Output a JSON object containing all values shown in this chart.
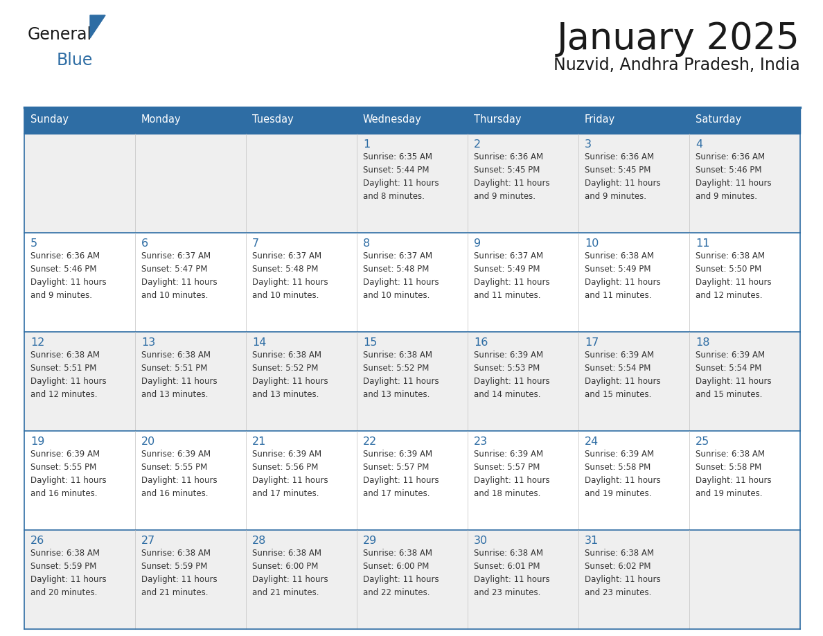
{
  "title": "January 2025",
  "subtitle": "Nuzvid, Andhra Pradesh, India",
  "header_bg": "#2E6DA4",
  "header_text_color": "#FFFFFF",
  "cell_bg_odd": "#EFEFEF",
  "cell_bg_even": "#FFFFFF",
  "day_names": [
    "Sunday",
    "Monday",
    "Tuesday",
    "Wednesday",
    "Thursday",
    "Friday",
    "Saturday"
  ],
  "title_color": "#1a1a1a",
  "subtitle_color": "#1a1a1a",
  "line_color": "#2E6DA4",
  "day_num_color": "#2E6DA4",
  "cell_text_color": "#333333",
  "logo_general_color": "#1a1a1a",
  "logo_blue_color": "#2E6DA4",
  "logo_triangle_color": "#2E6DA4",
  "calendar_data": [
    [
      null,
      null,
      null,
      {
        "day": "1",
        "sunrise": "6:35 AM",
        "sunset": "5:44 PM",
        "daylight_h": "11 hours",
        "daylight_m": "and 8 minutes."
      },
      {
        "day": "2",
        "sunrise": "6:36 AM",
        "sunset": "5:45 PM",
        "daylight_h": "11 hours",
        "daylight_m": "and 9 minutes."
      },
      {
        "day": "3",
        "sunrise": "6:36 AM",
        "sunset": "5:45 PM",
        "daylight_h": "11 hours",
        "daylight_m": "and 9 minutes."
      },
      {
        "day": "4",
        "sunrise": "6:36 AM",
        "sunset": "5:46 PM",
        "daylight_h": "11 hours",
        "daylight_m": "and 9 minutes."
      }
    ],
    [
      {
        "day": "5",
        "sunrise": "6:36 AM",
        "sunset": "5:46 PM",
        "daylight_h": "11 hours",
        "daylight_m": "and 9 minutes."
      },
      {
        "day": "6",
        "sunrise": "6:37 AM",
        "sunset": "5:47 PM",
        "daylight_h": "11 hours",
        "daylight_m": "and 10 minutes."
      },
      {
        "day": "7",
        "sunrise": "6:37 AM",
        "sunset": "5:48 PM",
        "daylight_h": "11 hours",
        "daylight_m": "and 10 minutes."
      },
      {
        "day": "8",
        "sunrise": "6:37 AM",
        "sunset": "5:48 PM",
        "daylight_h": "11 hours",
        "daylight_m": "and 10 minutes."
      },
      {
        "day": "9",
        "sunrise": "6:37 AM",
        "sunset": "5:49 PM",
        "daylight_h": "11 hours",
        "daylight_m": "and 11 minutes."
      },
      {
        "day": "10",
        "sunrise": "6:38 AM",
        "sunset": "5:49 PM",
        "daylight_h": "11 hours",
        "daylight_m": "and 11 minutes."
      },
      {
        "day": "11",
        "sunrise": "6:38 AM",
        "sunset": "5:50 PM",
        "daylight_h": "11 hours",
        "daylight_m": "and 12 minutes."
      }
    ],
    [
      {
        "day": "12",
        "sunrise": "6:38 AM",
        "sunset": "5:51 PM",
        "daylight_h": "11 hours",
        "daylight_m": "and 12 minutes."
      },
      {
        "day": "13",
        "sunrise": "6:38 AM",
        "sunset": "5:51 PM",
        "daylight_h": "11 hours",
        "daylight_m": "and 13 minutes."
      },
      {
        "day": "14",
        "sunrise": "6:38 AM",
        "sunset": "5:52 PM",
        "daylight_h": "11 hours",
        "daylight_m": "and 13 minutes."
      },
      {
        "day": "15",
        "sunrise": "6:38 AM",
        "sunset": "5:52 PM",
        "daylight_h": "11 hours",
        "daylight_m": "and 13 minutes."
      },
      {
        "day": "16",
        "sunrise": "6:39 AM",
        "sunset": "5:53 PM",
        "daylight_h": "11 hours",
        "daylight_m": "and 14 minutes."
      },
      {
        "day": "17",
        "sunrise": "6:39 AM",
        "sunset": "5:54 PM",
        "daylight_h": "11 hours",
        "daylight_m": "and 15 minutes."
      },
      {
        "day": "18",
        "sunrise": "6:39 AM",
        "sunset": "5:54 PM",
        "daylight_h": "11 hours",
        "daylight_m": "and 15 minutes."
      }
    ],
    [
      {
        "day": "19",
        "sunrise": "6:39 AM",
        "sunset": "5:55 PM",
        "daylight_h": "11 hours",
        "daylight_m": "and 16 minutes."
      },
      {
        "day": "20",
        "sunrise": "6:39 AM",
        "sunset": "5:55 PM",
        "daylight_h": "11 hours",
        "daylight_m": "and 16 minutes."
      },
      {
        "day": "21",
        "sunrise": "6:39 AM",
        "sunset": "5:56 PM",
        "daylight_h": "11 hours",
        "daylight_m": "and 17 minutes."
      },
      {
        "day": "22",
        "sunrise": "6:39 AM",
        "sunset": "5:57 PM",
        "daylight_h": "11 hours",
        "daylight_m": "and 17 minutes."
      },
      {
        "day": "23",
        "sunrise": "6:39 AM",
        "sunset": "5:57 PM",
        "daylight_h": "11 hours",
        "daylight_m": "and 18 minutes."
      },
      {
        "day": "24",
        "sunrise": "6:39 AM",
        "sunset": "5:58 PM",
        "daylight_h": "11 hours",
        "daylight_m": "and 19 minutes."
      },
      {
        "day": "25",
        "sunrise": "6:38 AM",
        "sunset": "5:58 PM",
        "daylight_h": "11 hours",
        "daylight_m": "and 19 minutes."
      }
    ],
    [
      {
        "day": "26",
        "sunrise": "6:38 AM",
        "sunset": "5:59 PM",
        "daylight_h": "11 hours",
        "daylight_m": "and 20 minutes."
      },
      {
        "day": "27",
        "sunrise": "6:38 AM",
        "sunset": "5:59 PM",
        "daylight_h": "11 hours",
        "daylight_m": "and 21 minutes."
      },
      {
        "day": "28",
        "sunrise": "6:38 AM",
        "sunset": "6:00 PM",
        "daylight_h": "11 hours",
        "daylight_m": "and 21 minutes."
      },
      {
        "day": "29",
        "sunrise": "6:38 AM",
        "sunset": "6:00 PM",
        "daylight_h": "11 hours",
        "daylight_m": "and 22 minutes."
      },
      {
        "day": "30",
        "sunrise": "6:38 AM",
        "sunset": "6:01 PM",
        "daylight_h": "11 hours",
        "daylight_m": "and 23 minutes."
      },
      {
        "day": "31",
        "sunrise": "6:38 AM",
        "sunset": "6:02 PM",
        "daylight_h": "11 hours",
        "daylight_m": "and 23 minutes."
      },
      null
    ]
  ]
}
